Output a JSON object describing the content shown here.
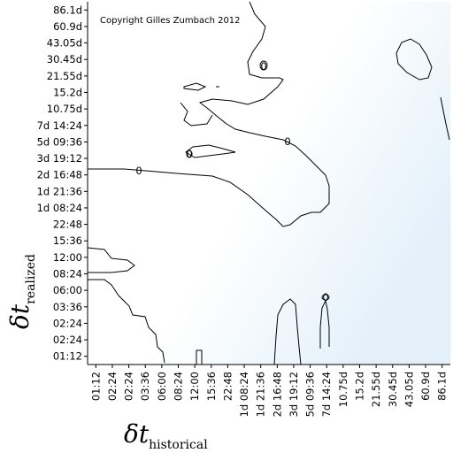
{
  "chart_data": {
    "type": "contour",
    "title": "",
    "copyright": "Copyright Gilles Zumbach 2012",
    "xlabel": {
      "main": "δt",
      "sub": "historical"
    },
    "ylabel": {
      "main": "δt",
      "sub": "realized"
    },
    "x_ticks": [
      "01:12",
      "02:24",
      "02:24",
      "03:36",
      "06:00",
      "08:24",
      "12:00",
      "15:36",
      "22:48",
      "1d 08:24",
      "1d 21:36",
      "2d 16:48",
      "3d 19:12",
      "5d 09:36",
      "7d 14:24",
      "10.75d",
      "15.2d",
      "21.55d",
      "30.45d",
      "43.05d",
      "60.9d",
      "86.1d"
    ],
    "y_ticks": [
      "86.1d",
      "60.9d",
      "43.05d",
      "30.45d",
      "21.55d",
      "15.2d",
      "10.75d",
      "7d 14:24",
      "5d 09:36",
      "3d 19:12",
      "2d 16:48",
      "1d 21:36",
      "1d 08:24",
      "22:48",
      "15:36",
      "12:00",
      "08:24",
      "06:00",
      "03:36",
      "02:24",
      "02:24",
      "01:12"
    ],
    "contour_labels": [
      "0",
      "0",
      "0",
      "0",
      "0"
    ],
    "grid": false,
    "legend": "none",
    "colors": {
      "line": "#000000",
      "background_low": "#ffffff",
      "background_high": "#e6f2fb"
    }
  }
}
